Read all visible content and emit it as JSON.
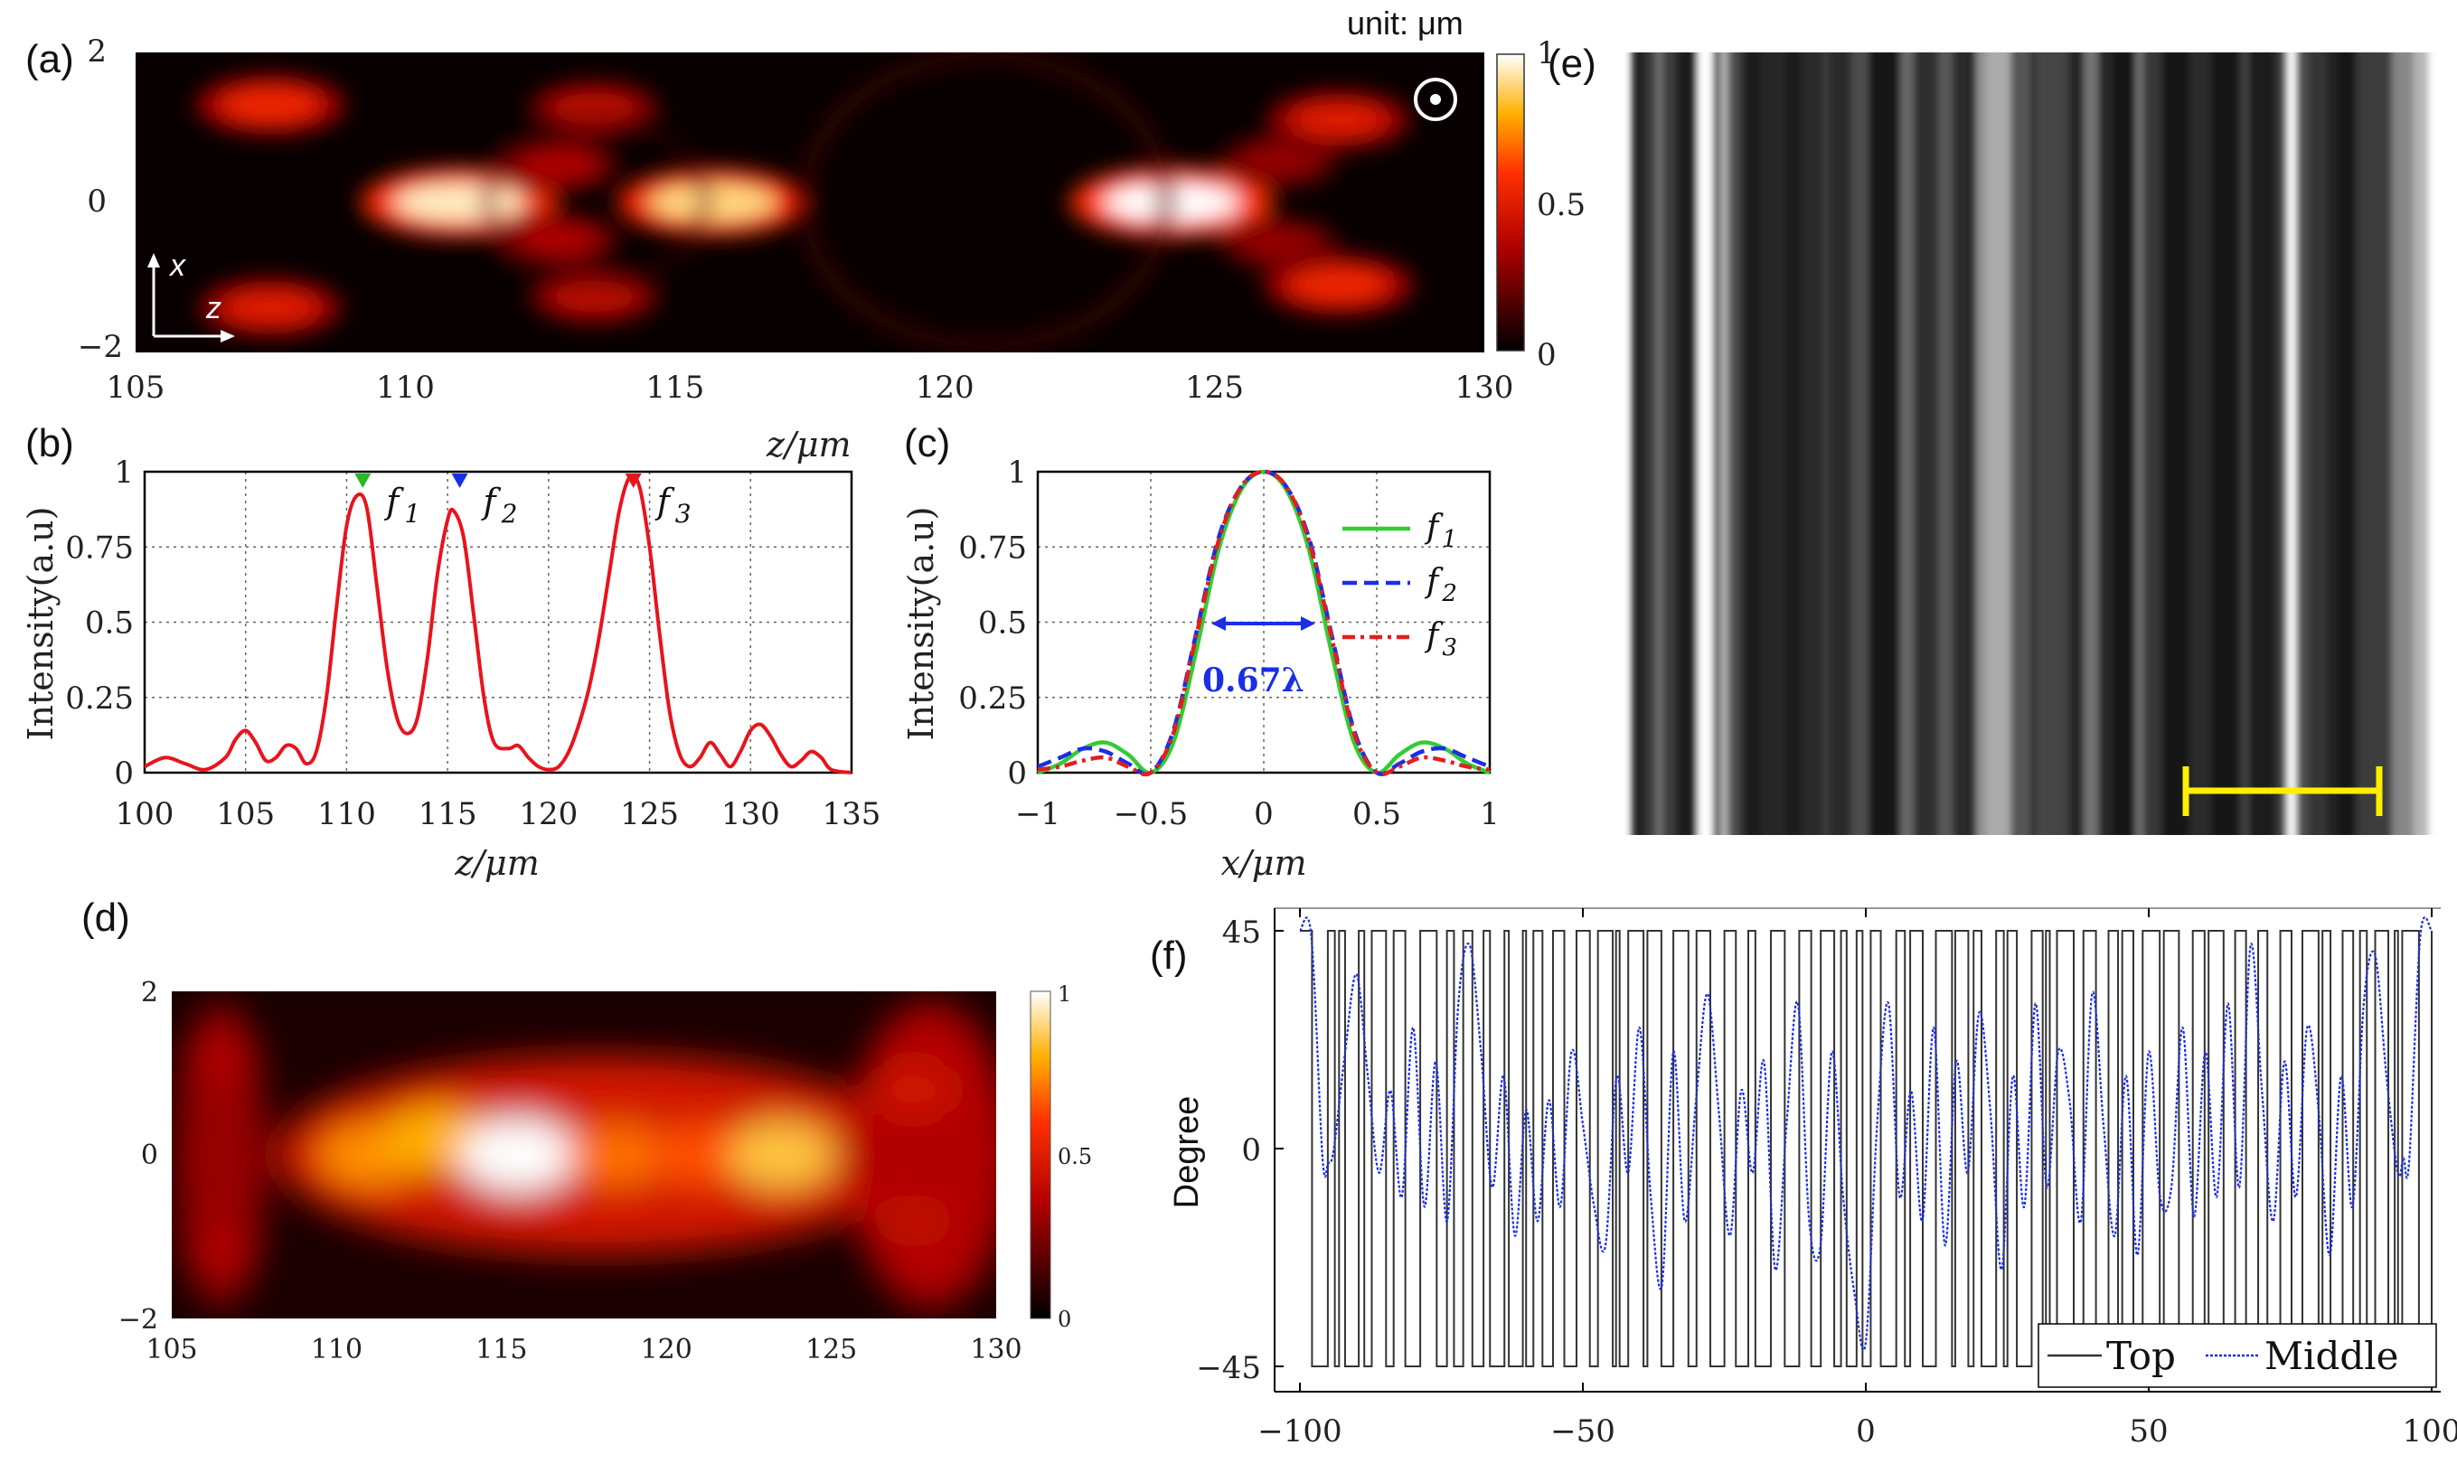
{
  "figure_labels": {
    "a": "(a)",
    "b": "(b)",
    "c": "(c)",
    "d": "(d)",
    "e": "(e)",
    "f": "(f)"
  },
  "chart_data": [
    {
      "id": "a",
      "type": "heatmap",
      "title": "",
      "xlabel": "z/μm",
      "ylabel": "",
      "x_ticks": [
        "105",
        "110",
        "115",
        "120",
        "125",
        "130"
      ],
      "y_ticks": [
        "2",
        "0",
        "−2"
      ],
      "xlim": [
        105,
        130
      ],
      "ylim": [
        -2,
        2
      ],
      "colorbar": {
        "ticks": [
          "1",
          "0.5",
          "0"
        ],
        "unit_label": "unit: μm",
        "range": [
          0,
          1
        ]
      },
      "axis_arrows": {
        "x": "x",
        "z": "z"
      },
      "hotspots": [
        {
          "z": 111,
          "x": 0,
          "intensity": 0.95
        },
        {
          "z": 115.7,
          "x": 0,
          "intensity": 0.9
        },
        {
          "z": 124.2,
          "x": 0,
          "intensity": 1.0
        },
        {
          "z": 107.5,
          "x": 1.3,
          "intensity": 0.55
        },
        {
          "z": 107.5,
          "x": -1.4,
          "intensity": 0.5
        },
        {
          "z": 113.5,
          "x": 1.25,
          "intensity": 0.4
        },
        {
          "z": 113.5,
          "x": -1.25,
          "intensity": 0.4
        },
        {
          "z": 127.3,
          "x": 1.1,
          "intensity": 0.5
        },
        {
          "z": 127.3,
          "x": -1.1,
          "intensity": 0.55
        },
        {
          "z": 112.8,
          "x": 0.5,
          "intensity": 0.35
        },
        {
          "z": 112.8,
          "x": -0.5,
          "intensity": 0.35
        },
        {
          "z": 126.2,
          "x": 0.55,
          "intensity": 0.3
        },
        {
          "z": 126.2,
          "x": -0.55,
          "intensity": 0.3
        }
      ]
    },
    {
      "id": "b",
      "type": "line",
      "xlabel": "z/μm",
      "ylabel": "Intensity(a.u)",
      "xlim": [
        100,
        135
      ],
      "ylim": [
        0,
        1
      ],
      "x_ticks": [
        "100",
        "105",
        "110",
        "115",
        "120",
        "125",
        "130",
        "135"
      ],
      "y_ticks": [
        "0",
        "0.25",
        "0.5",
        "0.75",
        "1"
      ],
      "series": [
        {
          "name": "intensity",
          "color": "#e8141c",
          "x": [
            100,
            101,
            102,
            103,
            104,
            104.5,
            105,
            105.5,
            106,
            106.5,
            107,
            107.5,
            108,
            108.5,
            109,
            109.5,
            110,
            110.5,
            111,
            111.5,
            112,
            112.5,
            113,
            113.5,
            114,
            114.5,
            115,
            115.3,
            115.8,
            116.3,
            116.8,
            117.3,
            118,
            118.5,
            119,
            119.5,
            120,
            120.5,
            121,
            121.5,
            122,
            122.5,
            123,
            123.5,
            124,
            124.5,
            125,
            125.5,
            126,
            126.5,
            127,
            127.5,
            128,
            128.5,
            129,
            129.5,
            130,
            130.5,
            131,
            131.5,
            132,
            132.5,
            133,
            133.5,
            134,
            135
          ],
          "y": [
            0.02,
            0.05,
            0.03,
            0.01,
            0.05,
            0.11,
            0.14,
            0.1,
            0.04,
            0.05,
            0.09,
            0.08,
            0.03,
            0.07,
            0.25,
            0.55,
            0.82,
            0.92,
            0.88,
            0.62,
            0.35,
            0.18,
            0.13,
            0.18,
            0.38,
            0.66,
            0.84,
            0.87,
            0.78,
            0.52,
            0.25,
            0.1,
            0.08,
            0.09,
            0.05,
            0.02,
            0.01,
            0.02,
            0.07,
            0.16,
            0.28,
            0.45,
            0.66,
            0.87,
            0.98,
            0.95,
            0.75,
            0.46,
            0.2,
            0.06,
            0.02,
            0.05,
            0.1,
            0.06,
            0.02,
            0.07,
            0.14,
            0.16,
            0.12,
            0.06,
            0.02,
            0.04,
            0.07,
            0.05,
            0.01,
            0.0
          ]
        }
      ],
      "annotations": [
        {
          "label": "f",
          "sub": "1",
          "z": 110.8,
          "marker_color": "#2ab52a"
        },
        {
          "label": "f",
          "sub": "2",
          "z": 115.6,
          "marker_color": "#1a2ee8"
        },
        {
          "label": "f",
          "sub": "3",
          "z": 124.2,
          "marker_color": "#e8141c"
        }
      ]
    },
    {
      "id": "c",
      "type": "line",
      "xlabel": "x/μm",
      "ylabel": "Intensity(a.u)",
      "xlim": [
        -1,
        1
      ],
      "ylim": [
        0,
        1
      ],
      "x_ticks": [
        "−1",
        "−0.5",
        "0",
        "0.5",
        "1"
      ],
      "y_ticks": [
        "0",
        "0.25",
        "0.5",
        "0.75",
        "1"
      ],
      "fwhm_label": "0.67λ",
      "series": [
        {
          "name": "f1",
          "sub": "1",
          "color": "#33cc33",
          "dash": "solid",
          "x": [
            -1,
            -0.9,
            -0.8,
            -0.7,
            -0.6,
            -0.5,
            -0.4,
            -0.3,
            -0.2,
            -0.1,
            0,
            0.1,
            0.2,
            0.3,
            0.4,
            0.5,
            0.6,
            0.7,
            0.8,
            0.9,
            1
          ],
          "y": [
            0.0,
            0.03,
            0.08,
            0.1,
            0.06,
            0.0,
            0.1,
            0.4,
            0.74,
            0.94,
            1.0,
            0.94,
            0.74,
            0.4,
            0.1,
            0.0,
            0.06,
            0.1,
            0.08,
            0.03,
            0.0
          ]
        },
        {
          "name": "f2",
          "sub": "2",
          "color": "#1a2ee8",
          "dash": "dashed",
          "x": [
            -1,
            -0.9,
            -0.8,
            -0.7,
            -0.6,
            -0.5,
            -0.4,
            -0.3,
            -0.2,
            -0.1,
            0,
            0.1,
            0.2,
            0.3,
            0.4,
            0.5,
            0.6,
            0.7,
            0.8,
            0.9,
            1
          ],
          "y": [
            0.02,
            0.05,
            0.08,
            0.07,
            0.03,
            0.0,
            0.14,
            0.46,
            0.78,
            0.95,
            1.0,
            0.95,
            0.78,
            0.46,
            0.14,
            0.0,
            0.03,
            0.07,
            0.08,
            0.05,
            0.02
          ]
        },
        {
          "name": "f3",
          "sub": "3",
          "color": "#e02020",
          "dash": "dashdot",
          "x": [
            -1,
            -0.9,
            -0.8,
            -0.7,
            -0.6,
            -0.5,
            -0.4,
            -0.3,
            -0.2,
            -0.1,
            0,
            0.1,
            0.2,
            0.3,
            0.4,
            0.5,
            0.6,
            0.7,
            0.8,
            0.9,
            1
          ],
          "y": [
            0.01,
            0.02,
            0.04,
            0.05,
            0.02,
            0.0,
            0.13,
            0.45,
            0.77,
            0.95,
            1.0,
            0.95,
            0.77,
            0.45,
            0.13,
            0.0,
            0.02,
            0.05,
            0.04,
            0.02,
            0.01
          ]
        }
      ]
    },
    {
      "id": "d",
      "type": "heatmap",
      "xlim": [
        105,
        130
      ],
      "ylim": [
        -2,
        2
      ],
      "x_ticks": [
        "105",
        "110",
        "115",
        "120",
        "125",
        "130"
      ],
      "y_ticks": [
        "2",
        "0",
        "−2"
      ],
      "colorbar": {
        "ticks": [
          "1",
          "0.5",
          "0"
        ],
        "range": [
          0,
          1
        ]
      },
      "hotspots": [
        {
          "z": 111,
          "x": 0,
          "intensity": 0.75
        },
        {
          "z": 113,
          "x": 0.2,
          "intensity": 0.8
        },
        {
          "z": 115.5,
          "x": 0,
          "intensity": 1.0
        },
        {
          "z": 118.5,
          "x": 0,
          "intensity": 0.7
        },
        {
          "z": 121,
          "x": 0,
          "intensity": 0.65
        },
        {
          "z": 123.5,
          "x": 0,
          "intensity": 0.85
        },
        {
          "z": 119.5,
          "x": 0.8,
          "intensity": 0.45
        },
        {
          "z": 119.5,
          "x": -0.8,
          "intensity": 0.45
        },
        {
          "z": 127.5,
          "x": 0.8,
          "intensity": 0.45
        },
        {
          "z": 127.5,
          "x": -0.8,
          "intensity": 0.4
        },
        {
          "z": 106.5,
          "x": 1.2,
          "intensity": 0.35
        },
        {
          "z": 106.5,
          "x": -1.2,
          "intensity": 0.35
        }
      ]
    },
    {
      "id": "e",
      "type": "image",
      "description_bands": "grayscale vertical stripe metasurface pattern",
      "scale_bar_color": "#ffee00"
    },
    {
      "id": "f",
      "type": "line",
      "ylabel": "Degree",
      "xlim": [
        -100,
        100
      ],
      "ylim": [
        -45,
        45
      ],
      "x_ticks": [
        "−100",
        "−50",
        "0",
        "50",
        "100"
      ],
      "y_ticks": [
        "45",
        "0",
        "−45"
      ],
      "legend": [
        {
          "name": "Top",
          "color": "#333333",
          "dash": "solid"
        },
        {
          "name": "Middle",
          "color": "#1a2ee8",
          "dash": "dotted"
        }
      ],
      "series": [
        {
          "name": "Top",
          "color": "#333333",
          "type": "binary",
          "levels": [
            -45,
            45
          ]
        },
        {
          "name": "Middle",
          "color": "#1a2ee8",
          "x": [
            -100,
            -98,
            -96,
            -95,
            -94,
            -92,
            -90,
            -88,
            -86,
            -84,
            -82,
            -80,
            -78,
            -76,
            -74,
            -72,
            -70,
            -68,
            -66,
            -64,
            -62,
            -60,
            -58,
            -56,
            -54,
            -52,
            -50,
            -48,
            -46,
            -44,
            -42,
            -40,
            -38,
            -36,
            -34,
            -32,
            -30,
            -28,
            -26,
            -24,
            -22,
            -20,
            -18,
            -16,
            -14,
            -12,
            -10,
            -8,
            -6,
            -4,
            -2,
            0,
            2,
            4,
            6,
            8,
            10,
            12,
            14,
            16,
            18,
            20,
            22,
            24,
            26,
            28,
            30,
            32,
            34,
            36,
            38,
            40,
            42,
            44,
            46,
            48,
            50,
            52,
            54,
            56,
            58,
            60,
            62,
            64,
            66,
            68,
            70,
            72,
            74,
            76,
            78,
            80,
            82,
            84,
            86,
            88,
            90,
            92,
            94,
            95,
            96,
            98,
            100
          ],
          "y": [
            45,
            44,
            -2,
            -3,
            0,
            20,
            36,
            15,
            -5,
            12,
            -10,
            25,
            -12,
            18,
            -15,
            30,
            42,
            20,
            -8,
            15,
            -18,
            8,
            -15,
            10,
            -12,
            20,
            5,
            -12,
            -20,
            15,
            -5,
            25,
            -10,
            -28,
            20,
            -15,
            10,
            32,
            8,
            -18,
            12,
            -5,
            18,
            -25,
            5,
            30,
            -15,
            -20,
            20,
            -10,
            -30,
            -40,
            5,
            30,
            -10,
            12,
            -15,
            25,
            -20,
            18,
            -5,
            28,
            8,
            -25,
            15,
            -12,
            30,
            -8,
            20,
            10,
            -15,
            32,
            5,
            -18,
            15,
            -22,
            20,
            -10,
            -8,
            25,
            -14,
            20,
            -10,
            30,
            -8,
            42,
            12,
            -15,
            18,
            -10,
            25,
            8,
            -22,
            15,
            -12,
            30,
            40,
            15,
            -5,
            -2,
            -3,
            44,
            45
          ]
        }
      ]
    }
  ]
}
